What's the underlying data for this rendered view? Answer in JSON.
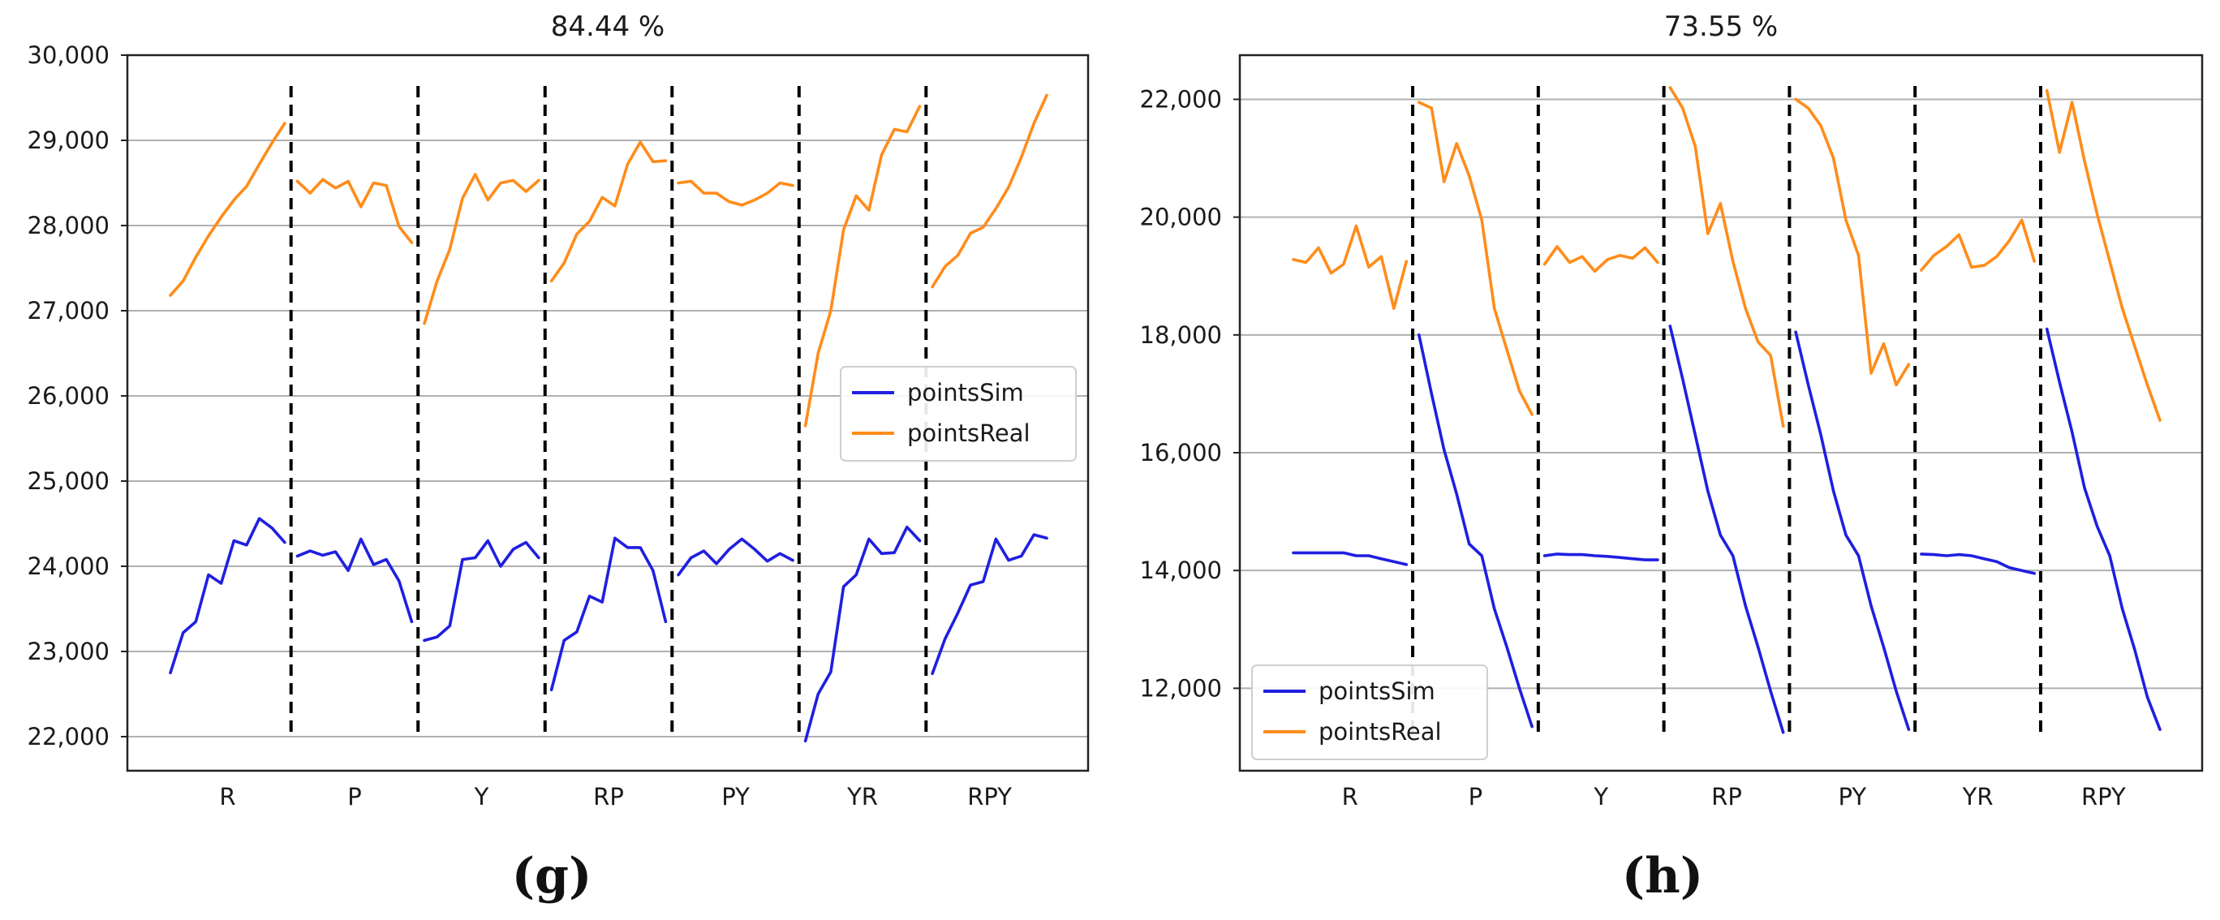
{
  "chart_data": [
    {
      "type": "line",
      "title": "84.44 %",
      "caption": "(g)",
      "ylim": [
        21600,
        30000
      ],
      "yticks": [
        22000,
        23000,
        24000,
        25000,
        26000,
        27000,
        28000,
        29000,
        30000
      ],
      "ytick_labels": [
        "22,000",
        "23,000",
        "24,000",
        "25,000",
        "26,000",
        "27,000",
        "28,000",
        "29,000",
        "30,000"
      ],
      "grid": "horizontal",
      "categories": [
        "R",
        "P",
        "Y",
        "RP",
        "PY",
        "YR",
        "RPY"
      ],
      "legend_position": "center-right",
      "series": [
        {
          "name": "pointsSim",
          "color": "#1f1fe0",
          "segments": [
            [
              22750,
              23220,
              23350,
              23900,
              23800,
              24300,
              24250,
              24560,
              24450,
              24280
            ],
            [
              24120,
              24180,
              24130,
              24170,
              23950,
              24320,
              24020,
              24080,
              23830,
              23350
            ],
            [
              23130,
              23170,
              23300,
              24080,
              24100,
              24300,
              24000,
              24200,
              24280,
              24100
            ],
            [
              22550,
              23130,
              23230,
              23650,
              23580,
              24330,
              24220,
              24220,
              23950,
              23350
            ],
            [
              23900,
              24100,
              24180,
              24030,
              24200,
              24320,
              24200,
              24060,
              24150,
              24070
            ],
            [
              21950,
              22500,
              22760,
              23760,
              23900,
              24320,
              24150,
              24160,
              24460,
              24300
            ],
            [
              22740,
              23150,
              23450,
              23780,
              23820,
              24320,
              24070,
              24120,
              24370,
              24330
            ]
          ]
        },
        {
          "name": "pointsReal",
          "color": "#ff8c1a",
          "segments": [
            [
              27180,
              27350,
              27630,
              27880,
              28100,
              28300,
              28460,
              28720,
              28970,
              29200
            ],
            [
              28520,
              28380,
              28540,
              28440,
              28520,
              28220,
              28500,
              28470,
              27990,
              27800
            ],
            [
              26850,
              27350,
              27720,
              28320,
              28600,
              28300,
              28500,
              28530,
              28400,
              28530
            ],
            [
              27350,
              27560,
              27900,
              28050,
              28330,
              28230,
              28720,
              28980,
              28750,
              28760
            ],
            [
              28500,
              28520,
              28380,
              28380,
              28280,
              28240,
              28300,
              28380,
              28500,
              28470
            ],
            [
              25650,
              26500,
              27000,
              27950,
              28350,
              28180,
              28830,
              29130,
              29100,
              29400
            ],
            [
              27280,
              27520,
              27650,
              27910,
              27980,
              28200,
              28450,
              28800,
              29200,
              29530
            ]
          ]
        }
      ]
    },
    {
      "type": "line",
      "title": "73.55 %",
      "caption": "(h)",
      "ylim": [
        10600,
        22750
      ],
      "yticks": [
        12000,
        14000,
        16000,
        18000,
        20000,
        22000
      ],
      "ytick_labels": [
        "12,000",
        "14,000",
        "16,000",
        "18,000",
        "20,000",
        "22,000"
      ],
      "grid": "horizontal",
      "categories": [
        "R",
        "P",
        "Y",
        "RP",
        "PY",
        "YR",
        "RPY"
      ],
      "legend_position": "lower-left",
      "series": [
        {
          "name": "pointsSim",
          "color": "#1f1fe0",
          "segments": [
            [
              14300,
              14300,
              14300,
              14300,
              14300,
              14250,
              14250,
              14200,
              14150,
              14100
            ],
            [
              18000,
              17000,
              16050,
              15300,
              14450,
              14250,
              13350,
              12700,
              12000,
              11350
            ],
            [
              14250,
              14280,
              14270,
              14270,
              14250,
              14240,
              14220,
              14200,
              14180,
              14180
            ],
            [
              18150,
              17250,
              16300,
              15350,
              14600,
              14250,
              13400,
              12700,
              11950,
              11250
            ],
            [
              18050,
              17150,
              16300,
              15350,
              14600,
              14250,
              13400,
              12700,
              11950,
              11300
            ],
            [
              14280,
              14270,
              14250,
              14270,
              14250,
              14200,
              14150,
              14050,
              14000,
              13950
            ],
            [
              18100,
              17200,
              16350,
              15400,
              14750,
              14250,
              13350,
              12650,
              11850,
              11300
            ]
          ]
        },
        {
          "name": "pointsReal",
          "color": "#ff8c1a",
          "segments": [
            [
              19280,
              19230,
              19480,
              19050,
              19200,
              19850,
              19150,
              19330,
              18450,
              19250
            ],
            [
              21950,
              21850,
              20600,
              21250,
              20700,
              19950,
              18450,
              17750,
              17050,
              16650
            ],
            [
              19200,
              19500,
              19230,
              19330,
              19080,
              19280,
              19350,
              19300,
              19480,
              19230
            ],
            [
              22200,
              21850,
              21200,
              19720,
              20230,
              19250,
              18450,
              17880,
              17650,
              16450
            ],
            [
              22000,
              21850,
              21550,
              21000,
              19950,
              19350,
              17350,
              17850,
              17150,
              17500
            ],
            [
              19100,
              19350,
              19500,
              19700,
              19150,
              19180,
              19330,
              19600,
              19950,
              19250
            ],
            [
              22150,
              21100,
              21950,
              20950,
              20050,
              19250,
              18450,
              17800,
              17150,
              16550
            ]
          ]
        }
      ]
    }
  ]
}
